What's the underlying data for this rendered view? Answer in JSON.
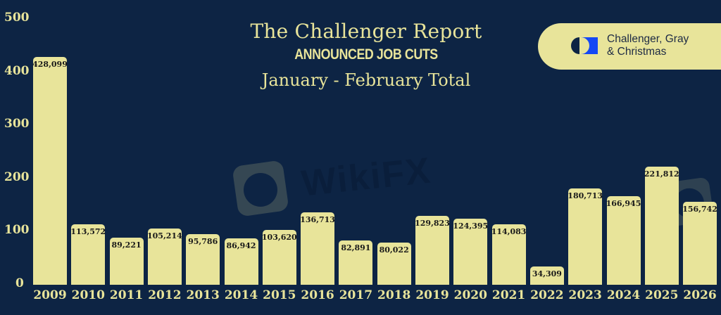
{
  "header": {
    "title": "The Challenger Report",
    "subtitle": "ANNOUNCED JOB CUTS",
    "period": "January - February Total"
  },
  "logo": {
    "line1": "Challenger, Gray",
    "line2": "& Christmas"
  },
  "watermark": "WikiFX",
  "colors": {
    "background": "#0d2444",
    "bar": "#e8e49a",
    "text": "#e8e49a",
    "logo_blue": "#1448f5"
  },
  "chart_data": {
    "type": "bar",
    "title": "The Challenger Report",
    "subtitle": "ANNOUNCED JOB CUTS — January - February Total",
    "xlabel": "",
    "ylabel": "",
    "ylim": [
      0,
      500
    ],
    "yticks": [
      "0",
      "100",
      "200",
      "300",
      "400",
      "500"
    ],
    "grid": false,
    "legend": null,
    "categories": [
      "2009",
      "2010",
      "2011",
      "2012",
      "2013",
      "2014",
      "2015",
      "2016",
      "2017",
      "2018",
      "2019",
      "2020",
      "2021",
      "2022",
      "2023",
      "2024",
      "2025",
      "2026"
    ],
    "values": [
      428099,
      113572,
      89221,
      105214,
      95786,
      86942,
      103620,
      136713,
      82891,
      80022,
      129823,
      124395,
      114083,
      34309,
      180713,
      166945,
      221812,
      156742
    ],
    "value_labels": [
      "428,099",
      "113,572",
      "89,221",
      "105,214",
      "95,786",
      "86,942",
      "103,620",
      "136,713",
      "82,891",
      "80,022",
      "129,823",
      "124,395",
      "114,083",
      "34,309",
      "180,713",
      "166,945",
      "221,812",
      "156,742"
    ]
  }
}
